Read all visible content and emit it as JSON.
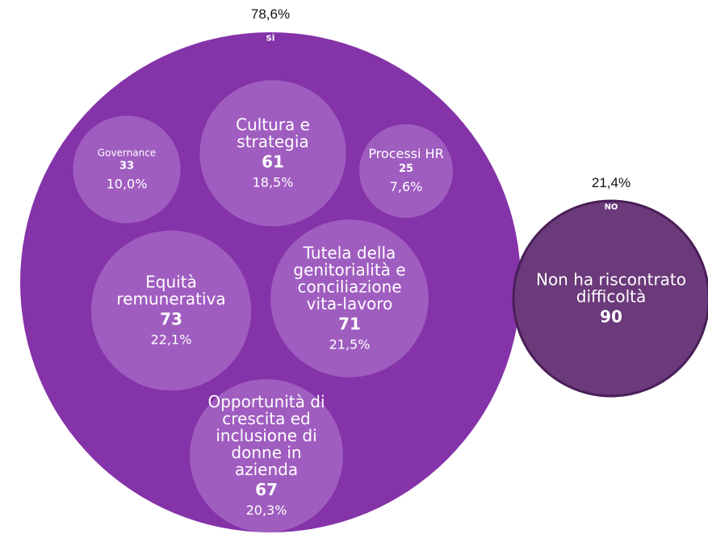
{
  "chart_data": {
    "type": "packed-bubble",
    "groups": [
      {
        "name": "SÌ",
        "share": 78.6,
        "share_label": "78,6%",
        "color": "#8533a9",
        "bubble_color": "#a05dc0",
        "categories": [
          "Governance",
          "Cultura e strategia",
          "Processi HR",
          "Equità remunerativa",
          "Tutela della genitorialità e conciliazione vita-lavoro",
          "Opportunità di crescita ed inclusione di donne in azienda"
        ],
        "values": [
          33,
          61,
          25,
          73,
          71,
          67
        ],
        "shares": [
          10.0,
          18.5,
          7.6,
          22.1,
          21.5,
          20.3
        ],
        "share_labels": [
          "10,0%",
          "18,5%",
          "7,6%",
          "22,1%",
          "21,5%",
          "20,3%"
        ]
      },
      {
        "name": "NO",
        "share": 21.4,
        "share_label": "21,4%",
        "color": "#6b3a7a",
        "border_color": "#4a1f58",
        "categories": [
          "Non ha riscontrato difficoltà"
        ],
        "values": [
          90
        ]
      }
    ]
  }
}
